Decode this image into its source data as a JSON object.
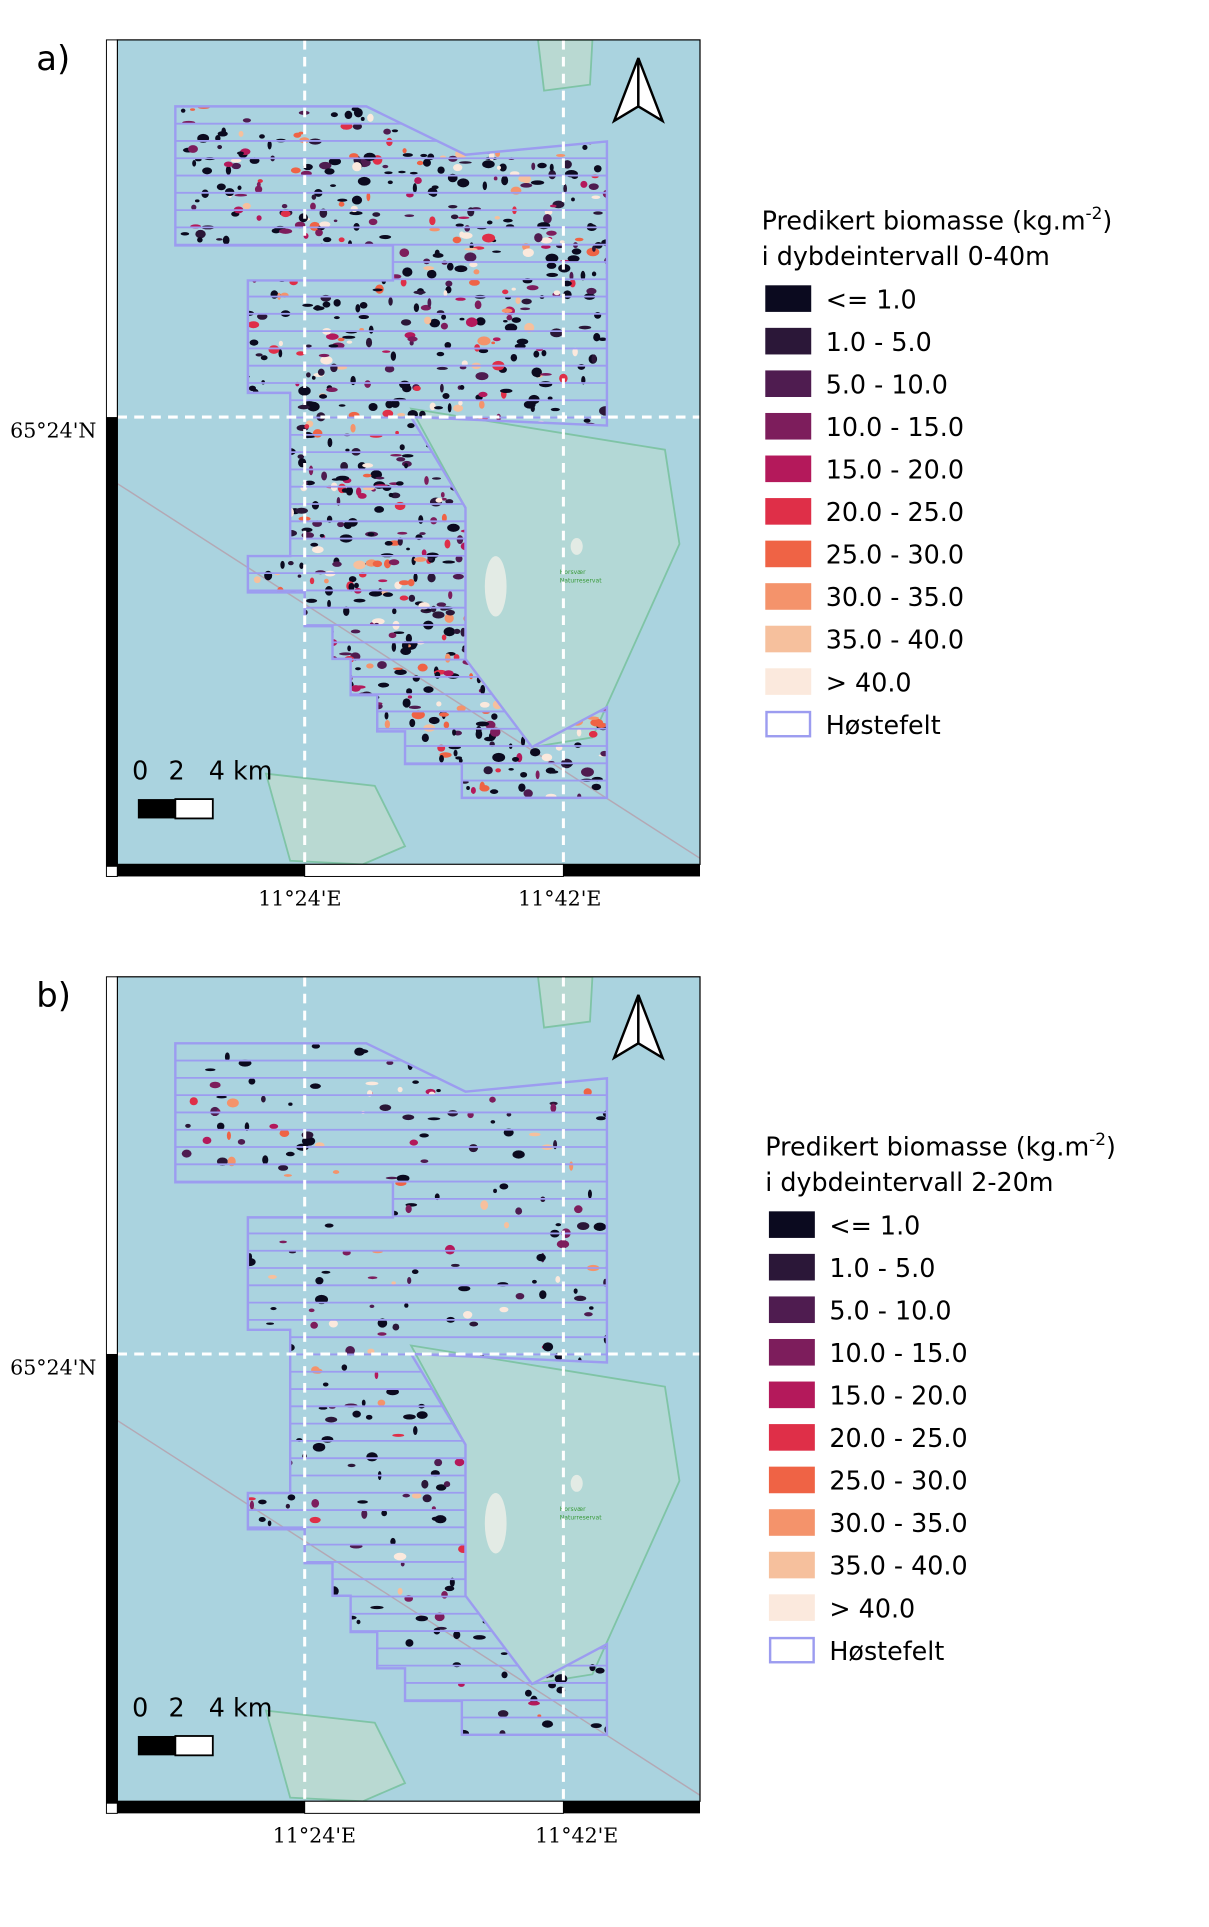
{
  "panels": [
    {
      "label": "a)",
      "north_label": "65°24'N",
      "lon_labels": [
        "11°24'E",
        "11°42'E"
      ],
      "scale_labels": [
        "0",
        "2",
        "4 km"
      ],
      "place_labels": [
        "Horsvær",
        "Naturreservat"
      ],
      "legend": {
        "title": "Predikert biomasse (kg.m",
        "title_sup": "-2",
        "title_end": ")",
        "subtitle": "i dybdeintervall 0-40m",
        "items": [
          {
            "label": "<= 1.0",
            "color": "#0b0a1f"
          },
          {
            "label": "1.0 - 5.0",
            "color": "#2b1738"
          },
          {
            "label": "5.0 - 10.0",
            "color": "#4f1c50"
          },
          {
            "label": "10.0 - 15.0",
            "color": "#7d1d5c"
          },
          {
            "label": "15.0 - 20.0",
            "color": "#b4195b"
          },
          {
            "label": "20.0 - 25.0",
            "color": "#df2f48"
          },
          {
            "label": "25.0 - 30.0",
            "color": "#ef6345"
          },
          {
            "label": "30.0 - 35.0",
            "color": "#f4936b"
          },
          {
            "label": "35.0 - 40.0",
            "color": "#f6c09d"
          },
          {
            "label": "> 40.0",
            "color": "#fbe9dd"
          }
        ],
        "field": {
          "label": "Høstefelt",
          "color": "#9c9cf0"
        }
      }
    },
    {
      "label": "b)",
      "north_label": "65°24'N",
      "lon_labels": [
        "11°24'E",
        "11°42'E"
      ],
      "scale_labels": [
        "0",
        "2",
        "4 km"
      ],
      "place_labels": [
        "Horsvær",
        "Naturreservat"
      ],
      "legend": {
        "title": "Predikert biomasse (kg.m",
        "title_sup": "-2",
        "title_end": ")",
        "subtitle": "i dybdeintervall 2-20m",
        "items": [
          {
            "label": "<= 1.0",
            "color": "#0b0a1f"
          },
          {
            "label": "1.0 - 5.0",
            "color": "#2b1738"
          },
          {
            "label": "5.0 - 10.0",
            "color": "#4f1c50"
          },
          {
            "label": "10.0 - 15.0",
            "color": "#7d1d5c"
          },
          {
            "label": "15.0 - 20.0",
            "color": "#b4195b"
          },
          {
            "label": "20.0 - 25.0",
            "color": "#df2f48"
          },
          {
            "label": "25.0 - 30.0",
            "color": "#ef6345"
          },
          {
            "label": "30.0 - 35.0",
            "color": "#f4936b"
          },
          {
            "label": "35.0 - 40.0",
            "color": "#f6c09d"
          },
          {
            "label": "> 40.0",
            "color": "#fbe9dd"
          }
        ],
        "field": {
          "label": "Høstefelt",
          "color": "#9c9cf0"
        }
      }
    }
  ]
}
